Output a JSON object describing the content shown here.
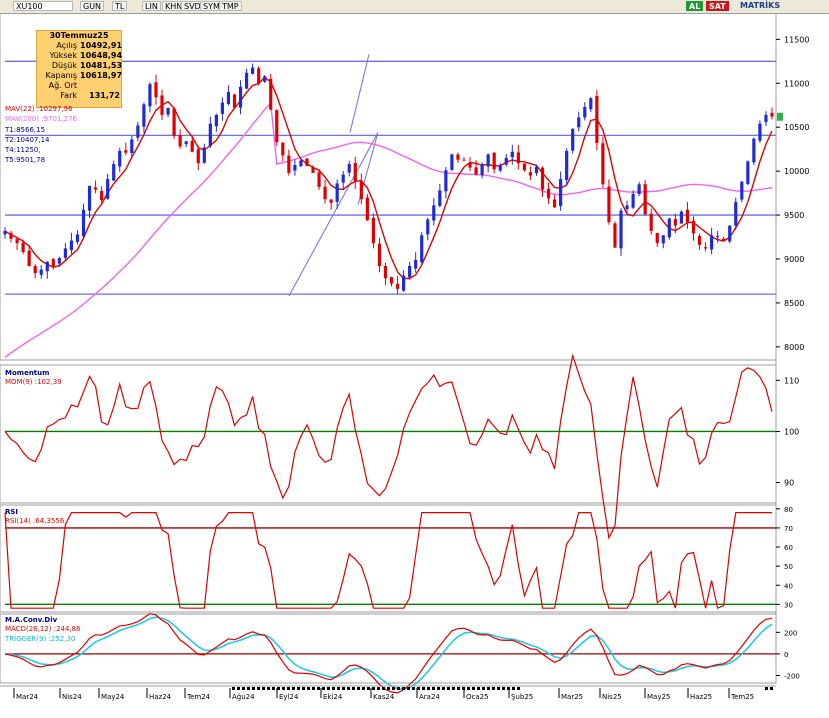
{
  "toolbar": {
    "symbol": "XU100",
    "buttons": [
      "GUN",
      "TL",
      "LIN",
      "KHN",
      "SVD",
      "SYM",
      "TMP"
    ],
    "al": "AL",
    "sat": "SAT",
    "brand": "MATRİKS"
  },
  "info_box": {
    "date": "30Temmuz25",
    "rows": [
      {
        "label": "Açılış",
        "value": "10492,91"
      },
      {
        "label": "Yüksek",
        "value": "10648,94"
      },
      {
        "label": "Düşük",
        "value": "10481,53"
      },
      {
        "label": "Kapanış",
        "value": "10618,97"
      },
      {
        "label": "Ağ. Ort",
        "value": ""
      },
      {
        "label": "Fark",
        "value": "131,72"
      }
    ]
  },
  "price_labels": {
    "mav22": "MAV(22)",
    "mav22_val": ":10297,96",
    "mav200": "MAV(200)",
    "mav200_val": ":9701,276",
    "t1": "T1:8566,15",
    "t2": "T2:10407,14",
    "t4": "T4:11250,",
    "t5": "T5:9501,78"
  },
  "momentum_labels": {
    "title": "Momentum",
    "series": "MOM(9)",
    "value": ":102,39"
  },
  "rsi_labels": {
    "title": "RSI",
    "series": "RSI(14)",
    "value": ":64,3556"
  },
  "macd_labels": {
    "title": "M.A.Conv.Div",
    "macd": "MACD(26,12)",
    "macd_val": ":244,86",
    "trigger": "TRIGGER(9)",
    "trigger_val": ":252,30"
  },
  "colors": {
    "candle_up": "#1f2bd6",
    "candle_down": "#e00000",
    "mav22": "#e00000",
    "mav200": "#ee66ee",
    "hline": "#6f6fe6",
    "mom": "#e00000",
    "rsi": "#e00000",
    "macd": "#e00000",
    "trigger": "#22c9e8",
    "green_ref": "#008000",
    "red_ref": "#990000"
  },
  "chart_data": [
    {
      "type": "candlestick",
      "x_ticks": [
        "Mar24",
        "Nis24",
        "May24",
        "Haz24",
        "Tem24",
        "Ağu24",
        "Eyl24",
        "Eki24",
        "Kas24",
        "Ara24",
        "Oca25",
        "Şub25",
        "Mar25",
        "Nis25",
        "May25",
        "Haz25",
        "Tem25"
      ],
      "y_ticks": [
        8000,
        8500,
        9000,
        9500,
        10000,
        10500,
        11000,
        11500
      ],
      "ylim": [
        7850,
        11800
      ],
      "horizontal_lines": [
        8600,
        9500,
        10407,
        11250
      ],
      "close": [
        9320,
        9230,
        9180,
        9080,
        8920,
        8840,
        8880,
        8970,
        8920,
        9010,
        9120,
        9210,
        9280,
        9560,
        9830,
        9790,
        9670,
        9910,
        10080,
        10230,
        10210,
        10360,
        10520,
        10760,
        10990,
        10840,
        10640,
        10720,
        10400,
        10280,
        10340,
        10220,
        10090,
        10270,
        10540,
        10640,
        10780,
        10900,
        10720,
        10960,
        11120,
        11180,
        11000,
        11080,
        10700,
        10330,
        10180,
        9980,
        10070,
        10120,
        10060,
        9980,
        9820,
        9680,
        9640,
        9860,
        9960,
        10080,
        9880,
        9680,
        9440,
        9180,
        8920,
        8780,
        8720,
        8660,
        8810,
        8920,
        8990,
        9270,
        9450,
        9610,
        9780,
        10010,
        10190,
        10130,
        10120,
        10040,
        9960,
        10080,
        10190,
        10020,
        10060,
        10150,
        10220,
        10090,
        10010,
        9950,
        10050,
        9790,
        9690,
        9590,
        9910,
        10230,
        10480,
        10610,
        10730,
        10830,
        10320,
        9850,
        9420,
        9130,
        9550,
        9610,
        9740,
        9850,
        9510,
        9320,
        9180,
        9270,
        9460,
        9380,
        9540,
        9420,
        9290,
        9160,
        9120,
        9270,
        9260,
        9210,
        9380,
        9650,
        9880,
        10110,
        10370,
        10540,
        10640,
        10620
      ],
      "mav22_last": 10297.96,
      "mav200_last": 9701.276
    },
    {
      "type": "line",
      "name": "MOM(9)",
      "y_ticks": [
        90,
        100,
        110
      ],
      "ylim": [
        86,
        113
      ],
      "reference": 100,
      "last": 102.39
    },
    {
      "type": "line",
      "name": "RSI(14)",
      "y_ticks": [
        30,
        40,
        50,
        60,
        70,
        80
      ],
      "ylim": [
        26,
        82
      ],
      "references": [
        30,
        70
      ],
      "last": 64.3556
    },
    {
      "type": "line",
      "series": [
        {
          "name": "MACD(26,12)",
          "last": 244.86
        },
        {
          "name": "TRIGGER(9)",
          "last": 252.3
        }
      ],
      "y_ticks": [
        -200,
        0,
        200
      ],
      "ylim": [
        -270,
        370
      ],
      "reference": 0
    }
  ]
}
